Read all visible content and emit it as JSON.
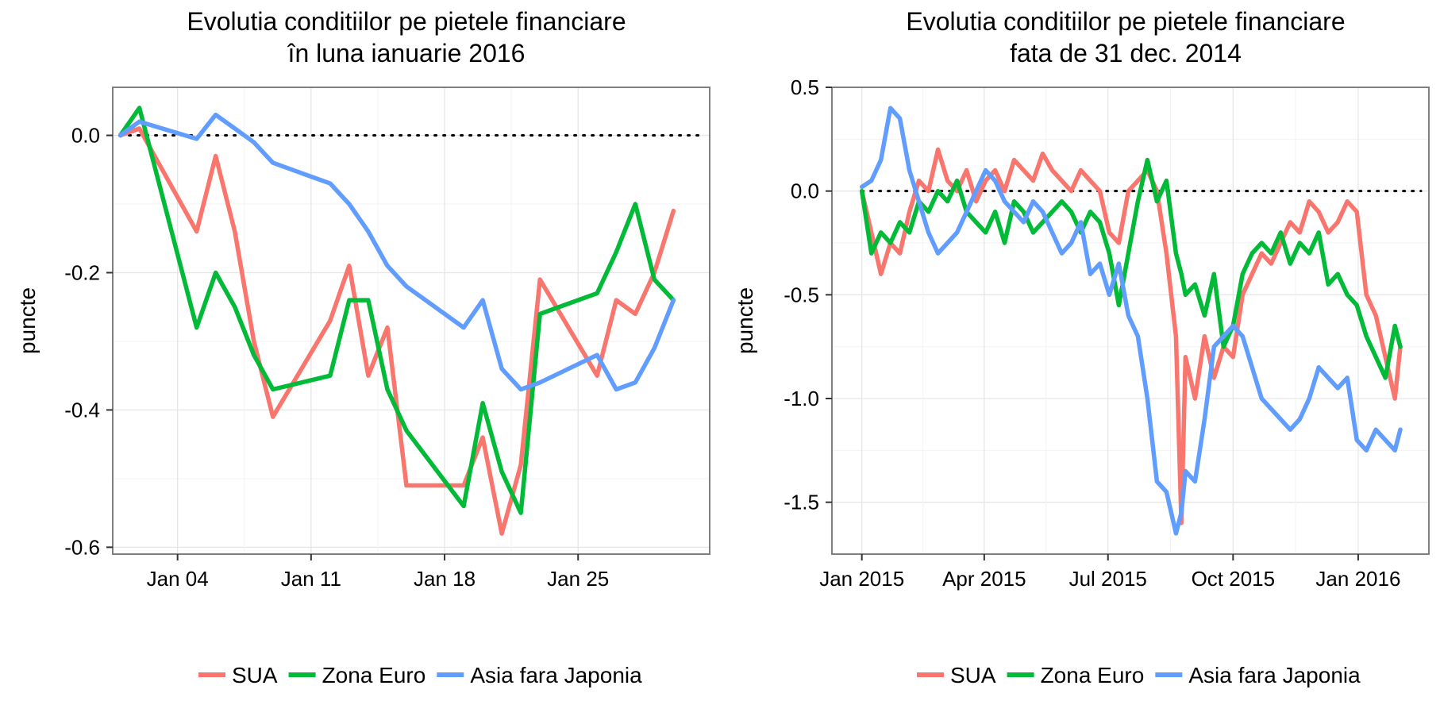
{
  "chart_data": [
    {
      "type": "line",
      "title_line1": "Evolutia conditiilor pe pietele financiare",
      "title_line2": "în luna ianuarie 2016",
      "xlabel": "",
      "ylabel": "puncte",
      "x_tick_labels": [
        "Jan 04",
        "Jan 11",
        "Jan 18",
        "Jan 25"
      ],
      "x_tick_days": [
        4,
        11,
        18,
        25
      ],
      "xlim_days": [
        0.6,
        31.9
      ],
      "y_ticks": [
        0.0,
        -0.2,
        -0.4,
        -0.6
      ],
      "y_tick_labels": [
        "0.0",
        "-0.2",
        "-0.4",
        "-0.6"
      ],
      "ylim": [
        -0.61,
        0.07
      ],
      "reference_line": 0.0,
      "grid": true,
      "legend_position": "bottom",
      "series": [
        {
          "name": "SUA",
          "color": "#F8766D",
          "x_days": [
            1,
            2,
            5,
            6,
            7,
            8,
            9,
            12,
            13,
            14,
            15,
            16,
            19,
            20,
            21,
            22,
            23,
            26,
            27,
            28,
            29,
            30
          ],
          "values": [
            0.0,
            0.01,
            -0.14,
            -0.03,
            -0.14,
            -0.3,
            -0.41,
            -0.27,
            -0.19,
            -0.35,
            -0.28,
            -0.51,
            -0.51,
            -0.44,
            -0.58,
            -0.48,
            -0.21,
            -0.35,
            -0.24,
            -0.26,
            -0.2,
            -0.11
          ]
        },
        {
          "name": "Zona Euro",
          "color": "#00BA38",
          "x_days": [
            1,
            2,
            5,
            6,
            7,
            8,
            9,
            12,
            13,
            14,
            15,
            16,
            19,
            20,
            21,
            22,
            23,
            26,
            27,
            28,
            29,
            30
          ],
          "values": [
            0.0,
            0.04,
            -0.28,
            -0.2,
            -0.25,
            -0.32,
            -0.37,
            -0.35,
            -0.24,
            -0.24,
            -0.37,
            -0.43,
            -0.54,
            -0.39,
            -0.49,
            -0.55,
            -0.26,
            -0.23,
            -0.17,
            -0.1,
            -0.21,
            -0.24
          ]
        },
        {
          "name": "Asia fara Japonia",
          "color": "#619CFF",
          "x_days": [
            1,
            2,
            5,
            6,
            7,
            8,
            9,
            12,
            13,
            14,
            15,
            16,
            19,
            20,
            21,
            22,
            23,
            26,
            27,
            28,
            29,
            30
          ],
          "values": [
            0.0,
            0.02,
            -0.005,
            0.03,
            0.01,
            -0.01,
            -0.04,
            -0.07,
            -0.1,
            -0.14,
            -0.19,
            -0.22,
            -0.28,
            -0.24,
            -0.34,
            -0.37,
            -0.36,
            -0.32,
            -0.37,
            -0.36,
            -0.31,
            -0.24
          ]
        }
      ]
    },
    {
      "type": "line",
      "title_line1": "Evolutia conditiilor pe pietele financiare",
      "title_line2": "fata de 31 dec. 2014",
      "xlabel": "",
      "ylabel": "puncte",
      "x_tick_labels": [
        "Jan 2015",
        "Apr 2015",
        "Jul 2015",
        "Oct 2015",
        "Jan 2016"
      ],
      "x_tick_dates": [
        "2015-01-01",
        "2015-04-01",
        "2015-07-01",
        "2015-10-01",
        "2016-01-01"
      ],
      "xlim_dates": [
        "2014-12-10",
        "2016-02-22"
      ],
      "y_ticks": [
        0.5,
        0.0,
        -0.5,
        -1.0,
        -1.5
      ],
      "y_tick_labels": [
        "0.5",
        "0.0",
        "-0.5",
        "-1.0",
        "-1.5"
      ],
      "ylim": [
        -1.75,
        0.5
      ],
      "reference_line": 0.0,
      "grid": true,
      "legend_position": "bottom",
      "series": [
        {
          "name": "SUA",
          "color": "#F8766D",
          "x_dates": [
            "2015-01-01",
            "2015-01-08",
            "2015-01-15",
            "2015-01-22",
            "2015-01-29",
            "2015-02-05",
            "2015-02-12",
            "2015-02-19",
            "2015-02-26",
            "2015-03-05",
            "2015-03-12",
            "2015-03-19",
            "2015-03-26",
            "2015-04-02",
            "2015-04-09",
            "2015-04-16",
            "2015-04-23",
            "2015-04-30",
            "2015-05-07",
            "2015-05-14",
            "2015-05-21",
            "2015-05-28",
            "2015-06-04",
            "2015-06-11",
            "2015-06-18",
            "2015-06-25",
            "2015-07-02",
            "2015-07-09",
            "2015-07-16",
            "2015-07-23",
            "2015-07-30",
            "2015-08-06",
            "2015-08-13",
            "2015-08-20",
            "2015-08-24",
            "2015-08-27",
            "2015-09-03",
            "2015-09-10",
            "2015-09-17",
            "2015-09-24",
            "2015-10-01",
            "2015-10-08",
            "2015-10-15",
            "2015-10-22",
            "2015-10-29",
            "2015-11-05",
            "2015-11-12",
            "2015-11-19",
            "2015-11-26",
            "2015-12-03",
            "2015-12-10",
            "2015-12-17",
            "2015-12-24",
            "2015-12-31",
            "2016-01-07",
            "2016-01-14",
            "2016-01-21",
            "2016-01-28",
            "2016-02-01"
          ],
          "values": [
            0.0,
            -0.2,
            -0.4,
            -0.25,
            -0.3,
            -0.1,
            0.05,
            0.0,
            0.2,
            0.05,
            0.0,
            0.1,
            -0.05,
            0.05,
            0.1,
            0.0,
            0.15,
            0.1,
            0.05,
            0.18,
            0.1,
            0.05,
            0.0,
            0.1,
            0.05,
            0.0,
            -0.2,
            -0.25,
            0.0,
            0.05,
            0.1,
            0.0,
            -0.3,
            -0.7,
            -1.6,
            -0.8,
            -1.0,
            -0.7,
            -0.9,
            -0.75,
            -0.8,
            -0.5,
            -0.4,
            -0.3,
            -0.35,
            -0.25,
            -0.15,
            -0.2,
            -0.05,
            -0.1,
            -0.2,
            -0.15,
            -0.05,
            -0.1,
            -0.5,
            -0.6,
            -0.8,
            -1.0,
            -0.75
          ]
        },
        {
          "name": "Zona Euro",
          "color": "#00BA38",
          "x_dates": [
            "2015-01-01",
            "2015-01-08",
            "2015-01-15",
            "2015-01-22",
            "2015-01-29",
            "2015-02-05",
            "2015-02-12",
            "2015-02-19",
            "2015-02-26",
            "2015-03-05",
            "2015-03-12",
            "2015-03-19",
            "2015-03-26",
            "2015-04-02",
            "2015-04-09",
            "2015-04-16",
            "2015-04-23",
            "2015-04-30",
            "2015-05-07",
            "2015-05-14",
            "2015-05-21",
            "2015-05-28",
            "2015-06-04",
            "2015-06-11",
            "2015-06-18",
            "2015-06-25",
            "2015-07-02",
            "2015-07-09",
            "2015-07-16",
            "2015-07-23",
            "2015-07-30",
            "2015-08-06",
            "2015-08-13",
            "2015-08-20",
            "2015-08-24",
            "2015-08-27",
            "2015-09-03",
            "2015-09-10",
            "2015-09-17",
            "2015-09-24",
            "2015-10-01",
            "2015-10-08",
            "2015-10-15",
            "2015-10-22",
            "2015-10-29",
            "2015-11-05",
            "2015-11-12",
            "2015-11-19",
            "2015-11-26",
            "2015-12-03",
            "2015-12-10",
            "2015-12-17",
            "2015-12-24",
            "2015-12-31",
            "2016-01-07",
            "2016-01-14",
            "2016-01-21",
            "2016-01-28",
            "2016-02-01"
          ],
          "values": [
            0.0,
            -0.3,
            -0.2,
            -0.25,
            -0.15,
            -0.2,
            -0.05,
            -0.1,
            0.0,
            -0.05,
            0.05,
            -0.1,
            -0.15,
            -0.2,
            -0.1,
            -0.25,
            -0.05,
            -0.1,
            -0.2,
            -0.15,
            -0.1,
            -0.05,
            -0.1,
            -0.2,
            -0.1,
            -0.15,
            -0.3,
            -0.55,
            -0.3,
            -0.05,
            0.15,
            -0.05,
            0.05,
            -0.3,
            -0.4,
            -0.5,
            -0.45,
            -0.6,
            -0.4,
            -0.75,
            -0.65,
            -0.4,
            -0.3,
            -0.25,
            -0.3,
            -0.2,
            -0.35,
            -0.25,
            -0.3,
            -0.2,
            -0.45,
            -0.4,
            -0.5,
            -0.55,
            -0.7,
            -0.8,
            -0.9,
            -0.65,
            -0.75
          ]
        },
        {
          "name": "Asia fara Japonia",
          "color": "#619CFF",
          "x_dates": [
            "2015-01-01",
            "2015-01-08",
            "2015-01-15",
            "2015-01-22",
            "2015-01-29",
            "2015-02-05",
            "2015-02-12",
            "2015-02-19",
            "2015-02-26",
            "2015-03-05",
            "2015-03-12",
            "2015-03-19",
            "2015-03-26",
            "2015-04-02",
            "2015-04-09",
            "2015-04-16",
            "2015-04-23",
            "2015-04-30",
            "2015-05-07",
            "2015-05-14",
            "2015-05-21",
            "2015-05-28",
            "2015-06-04",
            "2015-06-11",
            "2015-06-18",
            "2015-06-25",
            "2015-07-02",
            "2015-07-09",
            "2015-07-16",
            "2015-07-23",
            "2015-07-30",
            "2015-08-06",
            "2015-08-13",
            "2015-08-20",
            "2015-08-24",
            "2015-08-27",
            "2015-09-03",
            "2015-09-10",
            "2015-09-17",
            "2015-09-24",
            "2015-10-01",
            "2015-10-08",
            "2015-10-15",
            "2015-10-22",
            "2015-10-29",
            "2015-11-05",
            "2015-11-12",
            "2015-11-19",
            "2015-11-26",
            "2015-12-03",
            "2015-12-10",
            "2015-12-17",
            "2015-12-24",
            "2015-12-31",
            "2016-01-07",
            "2016-01-14",
            "2016-01-21",
            "2016-01-28",
            "2016-02-01"
          ],
          "values": [
            0.02,
            0.05,
            0.15,
            0.4,
            0.35,
            0.1,
            -0.05,
            -0.2,
            -0.3,
            -0.25,
            -0.2,
            -0.1,
            0.0,
            0.1,
            0.05,
            -0.05,
            -0.1,
            -0.15,
            -0.05,
            -0.1,
            -0.2,
            -0.3,
            -0.25,
            -0.15,
            -0.4,
            -0.35,
            -0.5,
            -0.35,
            -0.6,
            -0.7,
            -1.0,
            -1.4,
            -1.45,
            -1.65,
            -1.55,
            -1.35,
            -1.4,
            -1.1,
            -0.75,
            -0.7,
            -0.65,
            -0.7,
            -0.85,
            -1.0,
            -1.05,
            -1.1,
            -1.15,
            -1.1,
            -1.0,
            -0.85,
            -0.9,
            -0.95,
            -0.9,
            -1.2,
            -1.25,
            -1.15,
            -1.2,
            -1.25,
            -1.15
          ]
        }
      ]
    }
  ]
}
